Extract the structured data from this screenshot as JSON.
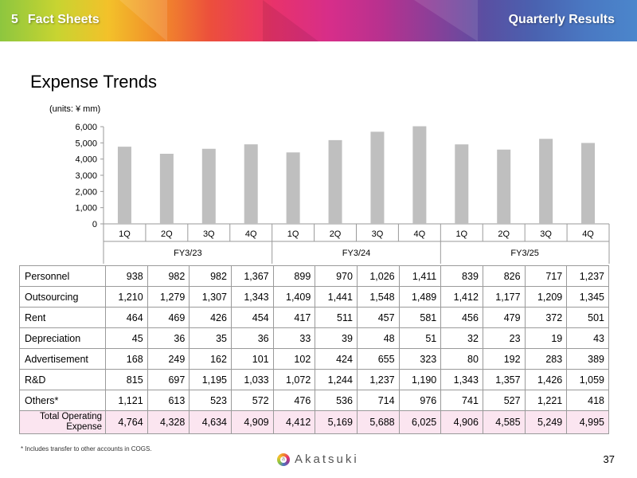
{
  "header": {
    "section_number": "5",
    "section_title": "Fact Sheets",
    "right_title": "Quarterly Results"
  },
  "page_title": "Expense Trends",
  "units_label": "(units: ¥ mm)",
  "colors": {
    "bar": "#bfbfbf",
    "total_row_bg": "#fbe5f0",
    "grid_line": "#9a9a9a"
  },
  "chart_data": {
    "type": "bar",
    "title": "",
    "xlabel": "",
    "ylabel": "",
    "ylim": [
      0,
      6000
    ],
    "yticks": [
      "0",
      "1,000",
      "2,000",
      "3,000",
      "4,000",
      "5,000",
      "6,000"
    ],
    "ytick_values": [
      0,
      1000,
      2000,
      3000,
      4000,
      5000,
      6000
    ],
    "grid": false,
    "legend": "none",
    "categories": [
      "1Q",
      "2Q",
      "3Q",
      "4Q",
      "1Q",
      "2Q",
      "3Q",
      "4Q",
      "1Q",
      "2Q",
      "3Q",
      "4Q"
    ],
    "groups": [
      "FY3/23",
      "FY3/24",
      "FY3/25"
    ],
    "values": [
      4764,
      4328,
      4634,
      4909,
      4412,
      5169,
      5688,
      6025,
      4906,
      4585,
      5249,
      4995
    ]
  },
  "table": {
    "rows": [
      {
        "label": "Personnel",
        "values": [
          "938",
          "982",
          "982",
          "1,367",
          "899",
          "970",
          "1,026",
          "1,411",
          "839",
          "826",
          "717",
          "1,237"
        ]
      },
      {
        "label": "Outsourcing",
        "values": [
          "1,210",
          "1,279",
          "1,307",
          "1,343",
          "1,409",
          "1,441",
          "1,548",
          "1,489",
          "1,412",
          "1,177",
          "1,209",
          "1,345"
        ]
      },
      {
        "label": "Rent",
        "values": [
          "464",
          "469",
          "426",
          "454",
          "417",
          "511",
          "457",
          "581",
          "456",
          "479",
          "372",
          "501"
        ]
      },
      {
        "label": "Depreciation",
        "values": [
          "45",
          "36",
          "35",
          "36",
          "33",
          "39",
          "48",
          "51",
          "32",
          "23",
          "19",
          "43"
        ]
      },
      {
        "label": "Advertisement",
        "values": [
          "168",
          "249",
          "162",
          "101",
          "102",
          "424",
          "655",
          "323",
          "80",
          "192",
          "283",
          "389"
        ]
      },
      {
        "label": "R&D",
        "values": [
          "815",
          "697",
          "1,195",
          "1,033",
          "1,072",
          "1,244",
          "1,237",
          "1,190",
          "1,343",
          "1,357",
          "1,426",
          "1,059"
        ]
      },
      {
        "label": "Others*",
        "values": [
          "1,121",
          "613",
          "523",
          "572",
          "476",
          "536",
          "714",
          "976",
          "741",
          "527",
          "1,221",
          "418"
        ]
      }
    ],
    "total": {
      "label_line1": "Total Operating",
      "label_line2": "Expense",
      "values": [
        "4,764",
        "4,328",
        "4,634",
        "4,909",
        "4,412",
        "5,169",
        "5,688",
        "6,025",
        "4,906",
        "4,585",
        "5,249",
        "4,995"
      ]
    }
  },
  "footnote": "* Includes transfer to other accounts in COGS.",
  "logo": {
    "text": "Akatsuki",
    "icon": "akatsuki-logo-icon"
  },
  "page_number": "37"
}
